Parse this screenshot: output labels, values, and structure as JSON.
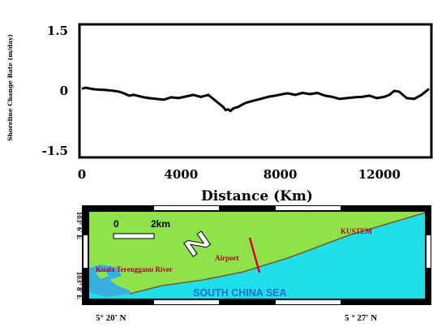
{
  "chart_data": {
    "type": "line",
    "title": "",
    "xlabel": "Distance (Km)",
    "ylabel": "Shoreline Change Rate (m/day)",
    "xlim": [
      0,
      14000
    ],
    "ylim": [
      -1.6,
      1.6
    ],
    "x_ticks": [
      "0",
      "4000",
      "8000",
      "12000"
    ],
    "y_ticks": [
      "1.5",
      "0",
      "-1.5"
    ],
    "grid": false,
    "series": [
      {
        "x": [
          0,
          150,
          300,
          500,
          700,
          1000,
          1300,
          1500,
          1700,
          1900,
          2100,
          2300,
          2500,
          2700,
          3000,
          3300,
          3600,
          3900,
          4200,
          4500,
          4800,
          5100,
          5300,
          5500,
          5700,
          5800,
          5900,
          6000,
          6100,
          6300,
          6600,
          6900,
          7200,
          7500,
          7800,
          8100,
          8300,
          8600,
          8900,
          9200,
          9500,
          9800,
          10100,
          10400,
          10700,
          11000,
          11300,
          11600,
          11900,
          12200,
          12400,
          12600,
          12800,
          13100,
          13400,
          13700,
          14000
        ],
        "y": [
          0.05,
          0.08,
          0.06,
          0.04,
          0.03,
          0.02,
          0.0,
          -0.02,
          -0.06,
          -0.12,
          -0.1,
          -0.13,
          -0.16,
          -0.18,
          -0.2,
          -0.22,
          -0.16,
          -0.18,
          -0.14,
          -0.1,
          -0.15,
          -0.1,
          -0.2,
          -0.3,
          -0.4,
          -0.48,
          -0.46,
          -0.5,
          -0.44,
          -0.4,
          -0.3,
          -0.25,
          -0.2,
          -0.15,
          -0.12,
          -0.08,
          -0.06,
          -0.1,
          -0.05,
          -0.08,
          -0.05,
          -0.12,
          -0.15,
          -0.2,
          -0.18,
          -0.16,
          -0.15,
          -0.12,
          -0.18,
          -0.15,
          -0.1,
          0.0,
          -0.02,
          -0.18,
          -0.2,
          -0.1,
          0.05
        ]
      }
    ]
  },
  "map": {
    "lat_top": "103° 6' E",
    "lat_bottom": "103° 8' E",
    "scale_zero": "0",
    "scale_km": "2km",
    "label_kustem": "KUSTEM",
    "label_airport": "Airport",
    "label_river": "Kuala Terengganu River",
    "label_sea": "SOUTH CHINA SEA",
    "lon_left": "5° 20' N",
    "lon_right": "5 ° 27' N",
    "colors": {
      "land": "#8ee34a",
      "sea": "#1ee0e8",
      "river_mouth": "#3aaee0",
      "label": "#b0002a",
      "sea_label": "#1f6fd6",
      "airport_line": "#e0001a"
    }
  }
}
